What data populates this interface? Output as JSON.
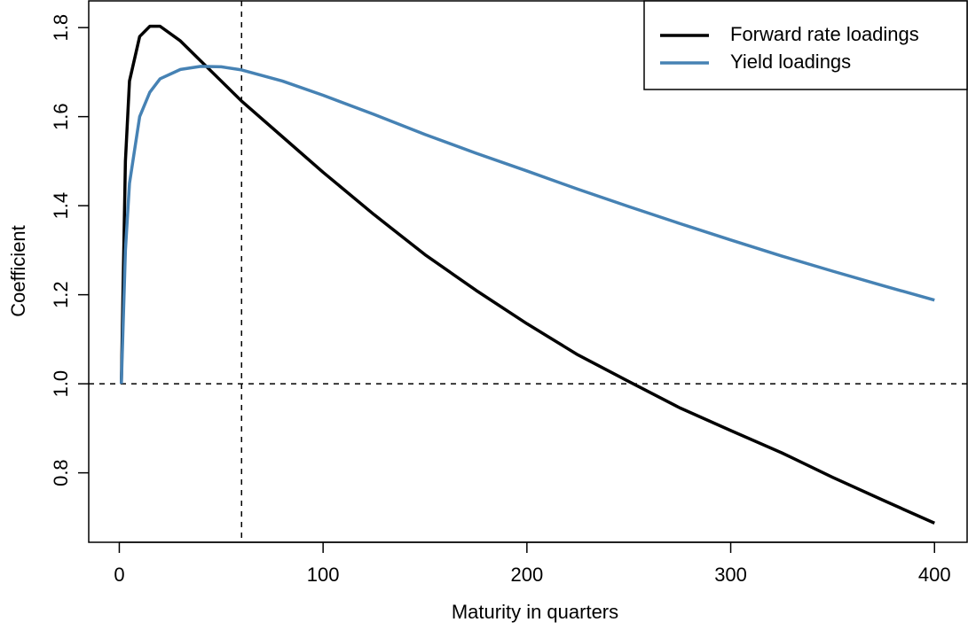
{
  "chart_data": {
    "type": "line",
    "xlabel": "Maturity in quarters",
    "ylabel": "Coefficient",
    "x": [
      1,
      3,
      5,
      10,
      15,
      20,
      30,
      40,
      50,
      60,
      80,
      100,
      125,
      150,
      175,
      200,
      225,
      250,
      275,
      300,
      325,
      350,
      375,
      400
    ],
    "series": [
      {
        "name": "Forward rate loadings",
        "color": "#000000",
        "values": [
          1.0,
          1.5,
          1.68,
          1.78,
          1.803,
          1.803,
          1.77,
          1.725,
          1.68,
          1.635,
          1.555,
          1.475,
          1.38,
          1.29,
          1.21,
          1.135,
          1.065,
          1.005,
          0.946,
          0.895,
          0.845,
          0.79,
          0.738,
          0.687
        ]
      },
      {
        "name": "Yield loadings",
        "color": "#4682b4",
        "values": [
          1.0,
          1.3,
          1.45,
          1.6,
          1.655,
          1.685,
          1.706,
          1.713,
          1.712,
          1.705,
          1.68,
          1.648,
          1.605,
          1.56,
          1.518,
          1.478,
          1.437,
          1.398,
          1.36,
          1.323,
          1.287,
          1.253,
          1.22,
          1.188
        ]
      }
    ],
    "xlim": [
      -15,
      416
    ],
    "ylim": [
      0.644,
      1.86
    ],
    "xticks": [
      0,
      100,
      200,
      300,
      400
    ],
    "yticks": [
      0.8,
      {
        "value": 1,
        "label": "1.0"
      },
      1.2,
      1.4,
      1.6,
      1.8
    ],
    "vline": 60,
    "hline": 1,
    "legend": "top-right"
  }
}
